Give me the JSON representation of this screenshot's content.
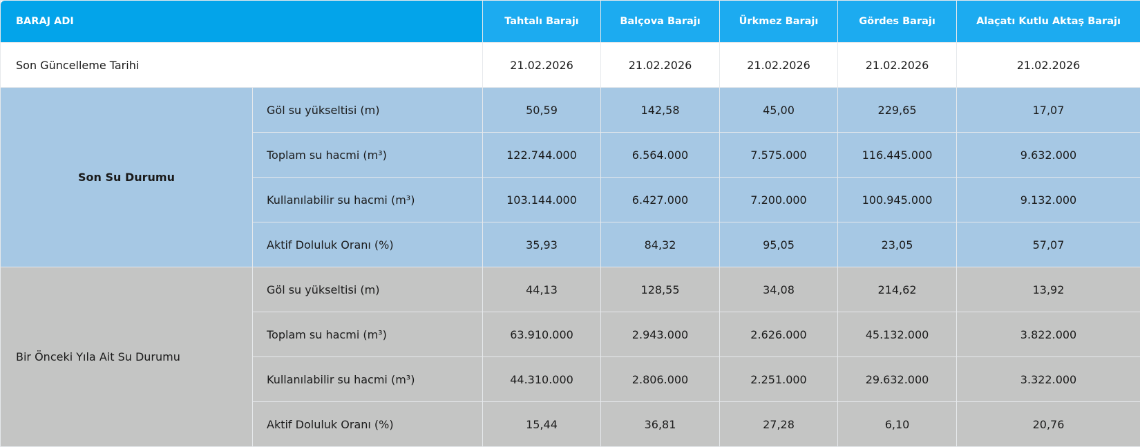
{
  "header": {
    "first": "BARAJ ADI",
    "dams": [
      "Tahtalı Barajı",
      "Balçova Barajı",
      "Ürkmez Barajı",
      "Gördes Barajı",
      "Alaçatı Kutlu Aktaş Barajı"
    ]
  },
  "update_row": {
    "label": "Son Güncelleme Tarihi",
    "values": [
      "21.02.2026",
      "21.02.2026",
      "21.02.2026",
      "21.02.2026",
      "21.02.2026"
    ]
  },
  "colors": {
    "header": "#03a4ea",
    "current": "#a6c8e4",
    "previous": "#c4c5c4"
  },
  "groups": [
    {
      "label": "Son Su Durumu",
      "rows": [
        {
          "metric": "Göl su yükseltisi (m)",
          "values": [
            "50,59",
            "142,58",
            "45,00",
            "229,65",
            "17,07"
          ]
        },
        {
          "metric": "Toplam su hacmi (m³)",
          "values": [
            "122.744.000",
            "6.564.000",
            "7.575.000",
            "116.445.000",
            "9.632.000"
          ]
        },
        {
          "metric": "Kullanılabilir su hacmi (m³)",
          "values": [
            "103.144.000",
            "6.427.000",
            "7.200.000",
            "100.945.000",
            "9.132.000"
          ]
        },
        {
          "metric": "Aktif Doluluk Oranı (%)",
          "values": [
            "35,93",
            "84,32",
            "95,05",
            "23,05",
            "57,07"
          ]
        }
      ]
    },
    {
      "label": "Bir Önceki Yıla Ait Su Durumu",
      "rows": [
        {
          "metric": "Göl su yükseltisi (m)",
          "values": [
            "44,13",
            "128,55",
            "34,08",
            "214,62",
            "13,92"
          ]
        },
        {
          "metric": "Toplam su hacmi (m³)",
          "values": [
            "63.910.000",
            "2.943.000",
            "2.626.000",
            "45.132.000",
            "3.822.000"
          ]
        },
        {
          "metric": "Kullanılabilir su hacmi (m³)",
          "values": [
            "44.310.000",
            "2.806.000",
            "2.251.000",
            "29.632.000",
            "3.322.000"
          ]
        },
        {
          "metric": "Aktif Doluluk Oranı (%)",
          "values": [
            "15,44",
            "36,81",
            "27,28",
            "6,10",
            "20,76"
          ]
        }
      ]
    }
  ]
}
